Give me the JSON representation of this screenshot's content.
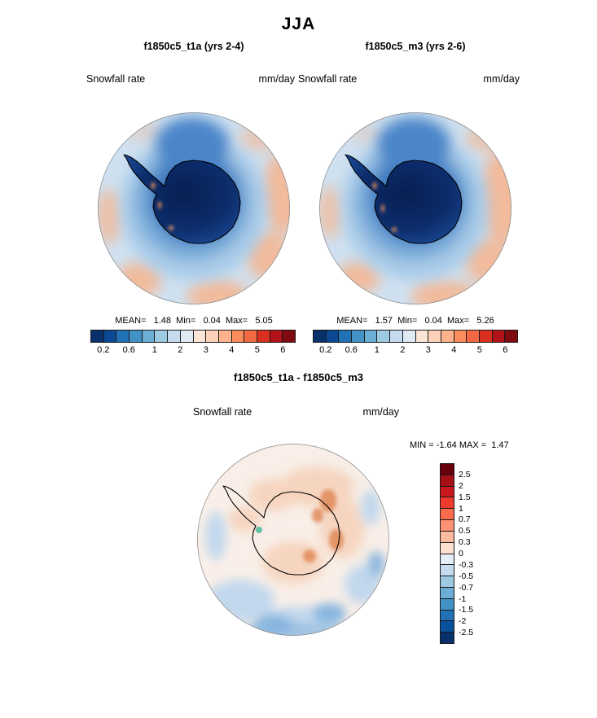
{
  "title": "JJA",
  "panels": [
    {
      "title": "f1850c5_t1a (yrs 2-4)",
      "field_label": "Snowfall rate",
      "units": "mm/day",
      "stats_text": "MEAN=   1.48  Min=   0.04  Max=   5.05"
    },
    {
      "title": "f1850c5_m3 (yrs 2-6)",
      "field_label": "Snowfall rate",
      "units": "mm/day",
      "stats_text": "MEAN=   1.57  Min=   0.04  Max=   5.26"
    }
  ],
  "diff_panel": {
    "title": "f1850c5_t1a - f1850c5_m3",
    "field_label": "Snowfall rate",
    "units": "mm/day",
    "stats_text": "MIN = -1.64 MAX =  1.47"
  },
  "colorbar_top": {
    "ticks": [
      "0.2",
      "0.6",
      "1",
      "2",
      "3",
      "4",
      "5",
      "6"
    ],
    "tick_every": 2,
    "colors": [
      "#08306b",
      "#0a4a94",
      "#2171b5",
      "#4292c6",
      "#6baed6",
      "#9ecae1",
      "#c6dbef",
      "#dfeaf5",
      "#fae5d7",
      "#fdd2b8",
      "#fcb28d",
      "#fb8d5d",
      "#f26a43",
      "#d92f21",
      "#b11218",
      "#7f0a10"
    ]
  },
  "colorbar_diff": {
    "ticks": [
      "2.5",
      "2",
      "1.5",
      "1",
      "0.7",
      "0.5",
      "0.3",
      "0",
      "-0.3",
      "-0.5",
      "-0.7",
      "-1",
      "-1.5",
      "-2",
      "-2.5"
    ],
    "tick_every": 1,
    "colors": [
      "#67000d",
      "#a50f15",
      "#cb181d",
      "#ef3b2c",
      "#fb6a4a",
      "#fc9272",
      "#fcbba1",
      "#fde0d0",
      "#e4eef8",
      "#c6dbef",
      "#9ecae1",
      "#6baed6",
      "#4292c6",
      "#2171b5",
      "#08519c",
      "#08306b"
    ]
  },
  "chart_data": [
    {
      "type": "heatmap",
      "title": "f1850c5_t1a (yrs 2-4)",
      "season": "JJA",
      "variable": "Snowfall rate",
      "units": "mm/day",
      "projection": "south polar stereographic (Antarctica)",
      "stats": {
        "mean": 1.48,
        "min": 0.04,
        "max": 5.05
      },
      "levels": [
        0.2,
        0.6,
        1,
        2,
        3,
        4,
        5,
        6
      ],
      "palette": "blue (low) to red (high)",
      "legend_position": "horizontal bar below map",
      "description": "Lowest snowfall (dark blue, below 0.2 mm/day) over the Antarctic interior, increasing through blues toward the coast; about 1-2 mm/day over the surrounding Southern Ocean with salmon patches (3-4 mm/day) near the outer edge of the domain."
    },
    {
      "type": "heatmap",
      "title": "f1850c5_m3 (yrs 2-6)",
      "season": "JJA",
      "variable": "Snowfall rate",
      "units": "mm/day",
      "projection": "south polar stereographic (Antarctica)",
      "stats": {
        "mean": 1.57,
        "min": 0.04,
        "max": 5.26
      },
      "levels": [
        0.2,
        0.6,
        1,
        2,
        3,
        4,
        5,
        6
      ],
      "palette": "blue (low) to red (high)",
      "legend_position": "horizontal bar below map",
      "description": "Same pattern as t1a: dark blue minimum over the continental interior, lighter blues over the ocean, with a broader salmon band of higher snowfall along the right and lower edges of the domain."
    },
    {
      "type": "heatmap",
      "title": "f1850c5_t1a - f1850c5_m3",
      "season": "JJA",
      "variable": "Snowfall rate difference",
      "units": "mm/day",
      "projection": "south polar stereographic (Antarctica)",
      "stats": {
        "min": -1.64,
        "max": 1.47
      },
      "levels": [
        -2.5,
        -2,
        -1.5,
        -1,
        -0.7,
        -0.5,
        -0.3,
        0,
        0.3,
        0.5,
        0.7,
        1,
        1.5,
        2,
        2.5
      ],
      "palette": "blue (negative) to red (positive)",
      "legend_position": "vertical bar at right",
      "description": "Differences mostly within plus/minus 0.3 mm/day (near white); small positive (orange) patches near the East Antarctic coast and over West Antarctica, and negative (blue) bands over the ocean near the lower and right map edges."
    }
  ]
}
